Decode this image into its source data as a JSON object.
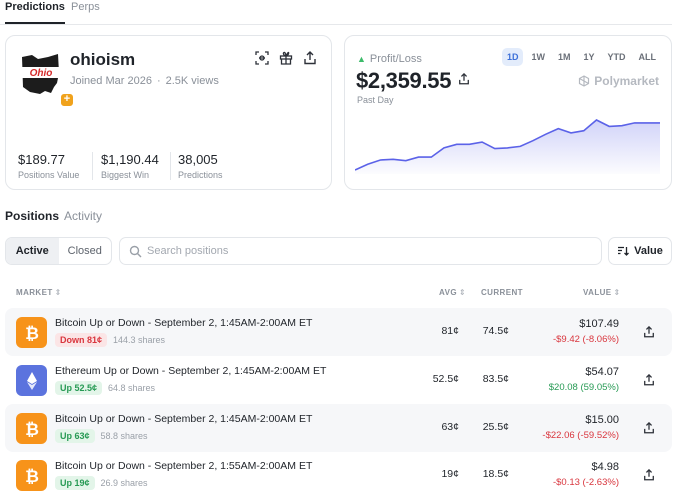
{
  "top_tabs": {
    "active": "Predictions",
    "inactive": "Perps"
  },
  "profile": {
    "username": "ohioism",
    "avatar_text": "Ohio",
    "joined": "Joined Mar 2026",
    "views": "2.5K views",
    "stats": [
      {
        "value": "$189.77",
        "label": "Positions Value"
      },
      {
        "value": "$1,190.44",
        "label": "Biggest Win"
      },
      {
        "value": "38,005",
        "label": "Predictions"
      }
    ]
  },
  "pnl": {
    "label": "Profit/Loss",
    "amount": "$2,359.55",
    "period": "Past Day",
    "ranges": [
      "1D",
      "1W",
      "1M",
      "1Y",
      "YTD",
      "ALL"
    ],
    "active_range": "1D",
    "brand": "Polymarket",
    "chart_data": {
      "type": "area",
      "y": [
        0,
        8,
        14,
        15,
        13,
        18,
        18,
        31,
        36,
        36,
        39,
        30,
        31,
        33,
        41,
        50,
        58,
        52,
        55,
        70,
        61,
        62,
        66,
        66,
        66
      ],
      "color": "#5b62e8"
    }
  },
  "positions_tabs": {
    "active": "Positions",
    "inactive": "Activity"
  },
  "filters": {
    "active": "Active",
    "closed": "Closed"
  },
  "search": {
    "placeholder": "Search positions"
  },
  "sort": {
    "label": "Value"
  },
  "table": {
    "headers": {
      "market": "MARKET",
      "avg": "AVG",
      "current": "CURRENT",
      "value": "VALUE"
    },
    "rows": [
      {
        "coin": "bitcoin",
        "title": "Bitcoin Up or Down - September 2, 1:45AM-2:00AM ET",
        "side": "Down 81¢",
        "direction": "down",
        "shares": "144.3 shares",
        "avg": "81¢",
        "current": "74.5¢",
        "value": "$107.49",
        "change": "-$9.42 (-8.06%)",
        "change_sign": "neg"
      },
      {
        "coin": "ethereum",
        "title": "Ethereum Up or Down - September 2, 1:45AM-2:00AM ET",
        "side": "Up 52.5¢",
        "direction": "up",
        "shares": "64.8 shares",
        "avg": "52.5¢",
        "current": "83.5¢",
        "value": "$54.07",
        "change": "$20.08 (59.05%)",
        "change_sign": "pos"
      },
      {
        "coin": "bitcoin",
        "title": "Bitcoin Up or Down - September 2, 1:45AM-2:00AM ET",
        "side": "Up 63¢",
        "direction": "up",
        "shares": "58.8 shares",
        "avg": "63¢",
        "current": "25.5¢",
        "value": "$15.00",
        "change": "-$22.06 (-59.52%)",
        "change_sign": "neg"
      },
      {
        "coin": "bitcoin",
        "title": "Bitcoin Up or Down - September 2, 1:55AM-2:00AM ET",
        "side": "Up 19¢",
        "direction": "up",
        "shares": "26.9 shares",
        "avg": "19¢",
        "current": "18.5¢",
        "value": "$4.98",
        "change": "-$0.13 (-2.63%)",
        "change_sign": "neg"
      }
    ]
  }
}
